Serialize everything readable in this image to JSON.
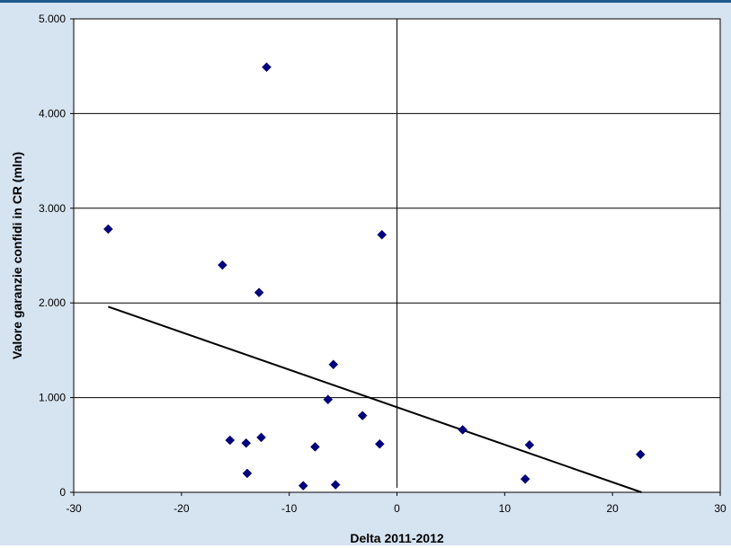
{
  "chart_data": {
    "type": "scatter",
    "title": "",
    "xlabel": "Delta 2011-2012",
    "ylabel": "Valore garanzie confidi in CR (mln)",
    "xlim": [
      -30,
      30
    ],
    "ylim": [
      0,
      5000
    ],
    "x_ticks": [
      -30,
      -20,
      -10,
      0,
      10,
      20,
      30
    ],
    "x_tick_labels": [
      "-30",
      "-20",
      "-10",
      "0",
      "10",
      "20",
      "30"
    ],
    "y_ticks": [
      0,
      1000,
      2000,
      3000,
      4000,
      5000
    ],
    "y_tick_labels": [
      "0",
      "1.000",
      "2.000",
      "3.000",
      "4.000",
      "5.000"
    ],
    "grid": "horizontal",
    "legend": "none",
    "points": [
      {
        "x": -26.8,
        "y": 2780
      },
      {
        "x": -12.1,
        "y": 4490
      },
      {
        "x": -16.2,
        "y": 2400
      },
      {
        "x": -12.8,
        "y": 2110
      },
      {
        "x": -1.4,
        "y": 2720
      },
      {
        "x": -5.9,
        "y": 1350
      },
      {
        "x": -6.4,
        "y": 980
      },
      {
        "x": -3.2,
        "y": 810
      },
      {
        "x": -1.6,
        "y": 510
      },
      {
        "x": -15.5,
        "y": 550
      },
      {
        "x": -12.6,
        "y": 580
      },
      {
        "x": -14.0,
        "y": 520
      },
      {
        "x": -7.6,
        "y": 480
      },
      {
        "x": -13.9,
        "y": 200
      },
      {
        "x": -8.7,
        "y": 70
      },
      {
        "x": -5.7,
        "y": 80
      },
      {
        "x": 6.1,
        "y": 660
      },
      {
        "x": 12.3,
        "y": 500
      },
      {
        "x": 11.9,
        "y": 140
      },
      {
        "x": 22.6,
        "y": 400
      }
    ],
    "trendline": {
      "x": [
        -26.8,
        22.7
      ],
      "y": [
        1960,
        0
      ]
    },
    "colors": {
      "marker": "#000080",
      "trendline": "#000000",
      "background": "#d6e3f0",
      "plot_area": "#ffffff"
    }
  }
}
